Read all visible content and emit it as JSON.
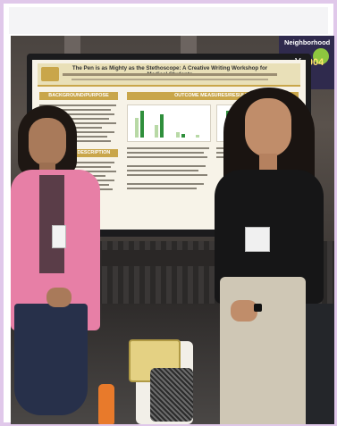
{
  "sign": {
    "text": "Neighborhood",
    "code": "15-004"
  },
  "monitor": {
    "brand": "V"
  },
  "poster": {
    "title": "The Pen is as Mighty as the Stethoscope: A Creative Writing Workshop for Medical Students",
    "sections": [
      "BACKGROUND/PURPOSE",
      "WORKSHOP DESCRIPTION",
      "OUTCOME MEASURES/RESULTS"
    ]
  },
  "colors": {
    "jacket": "#e77fa6",
    "poster_accent": "#c9a64a",
    "chart_bars": "#2f8f3c"
  }
}
